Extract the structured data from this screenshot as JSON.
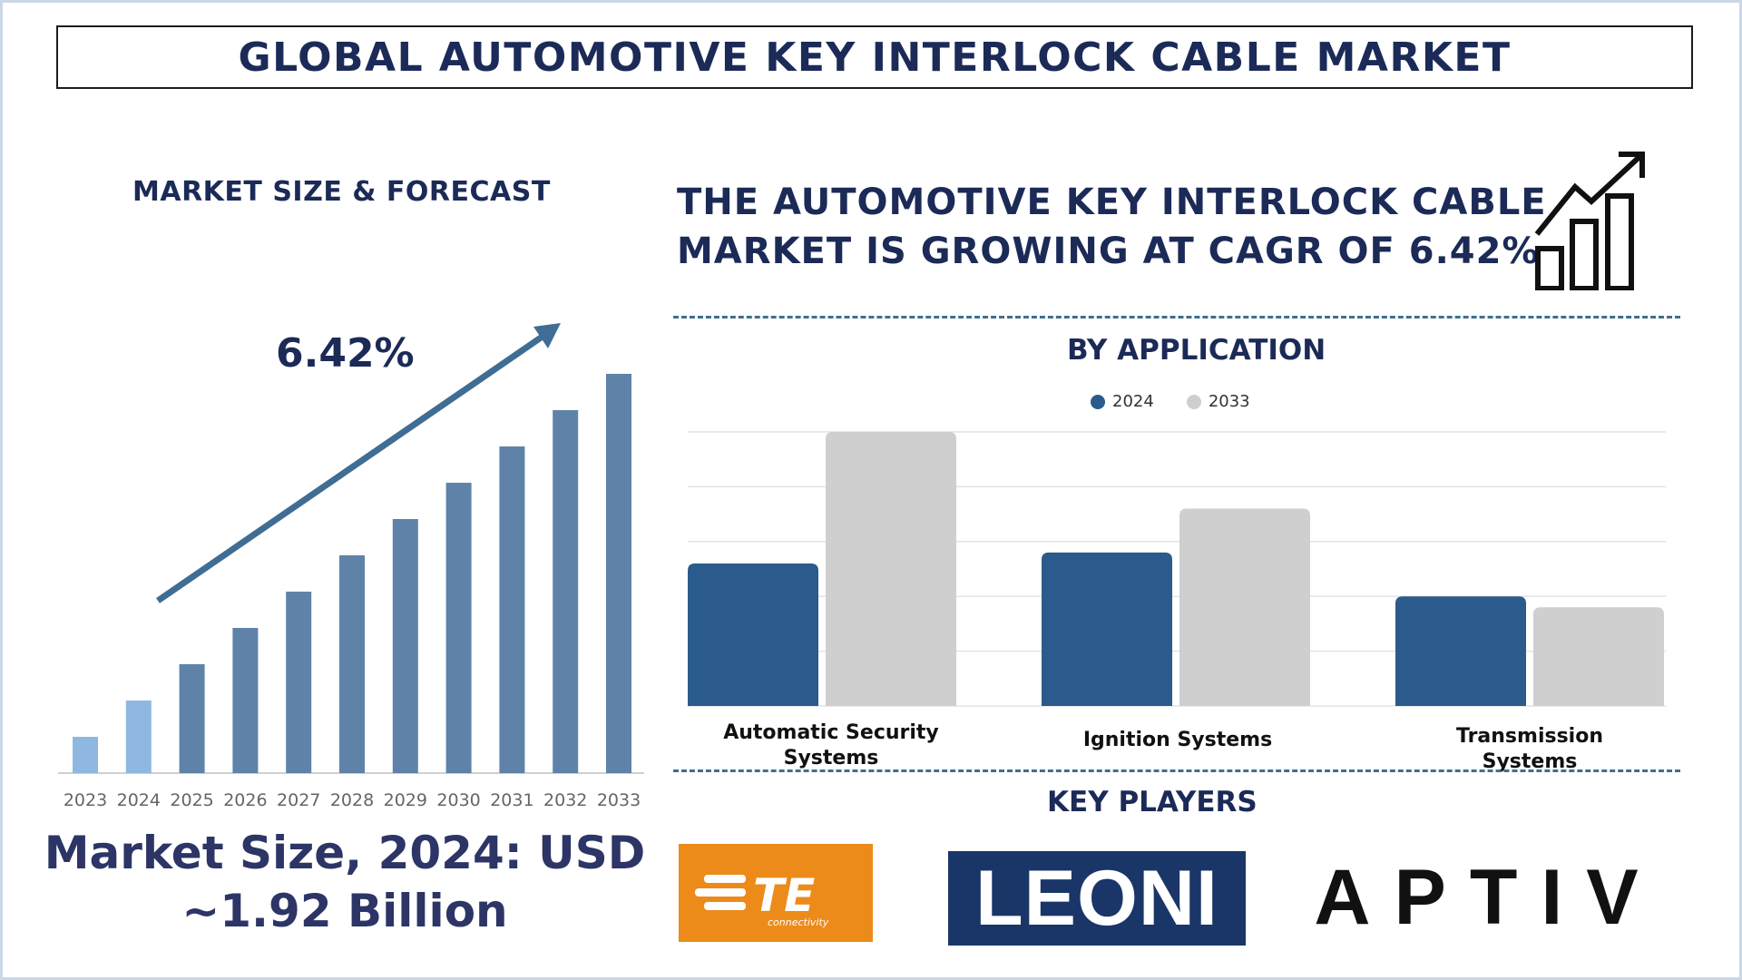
{
  "title": "GLOBAL AUTOMOTIVE KEY INTERLOCK CABLE MARKET",
  "left_panel": {
    "heading": "MARKET SIZE & FORECAST",
    "cagr_label": "6.42%",
    "market_size_line1": "Market Size, 2024: USD",
    "market_size_line2": "~1.92 Billion"
  },
  "right_panel": {
    "headline_line1": "THE AUTOMOTIVE KEY INTERLOCK CABLE",
    "headline_line2": "MARKET IS GROWING AT CAGR OF 6.42%",
    "by_application_title": "BY APPLICATION",
    "key_players_title": "KEY PLAYERS",
    "players": [
      "TE",
      "connectivity",
      "LEONI",
      "APTIV"
    ]
  },
  "colors": {
    "navy": "#1b2a57",
    "bar_2023_2024": "#8fb8e0",
    "bar_forecast": "#5f83a8",
    "arrow": "#3f6d94",
    "series_2024": "#2a5b8c",
    "series_2033": "#cfcfcf",
    "te_orange": "#ec8b1a",
    "leoni_blue": "#1a3568"
  },
  "chart_data": [
    {
      "type": "bar",
      "categories": [
        "2023",
        "2024",
        "2025",
        "2026",
        "2027",
        "2028",
        "2029",
        "2030",
        "2031",
        "2032",
        "2033"
      ],
      "values": [
        1.0,
        2.0,
        3.0,
        4.0,
        5.0,
        6.0,
        7.0,
        8.0,
        9.0,
        10.0,
        11.0
      ],
      "ylim": [
        0,
        11
      ],
      "grid": false,
      "annotation": "6.42%"
    },
    {
      "type": "bar",
      "title": "BY APPLICATION",
      "categories": [
        "Automatic Security Systems",
        "Ignition Systems",
        "Transmission Systems"
      ],
      "series": [
        {
          "name": "2024",
          "values": [
            2.6,
            2.8,
            2.0
          ]
        },
        {
          "name": "2033",
          "values": [
            5.0,
            3.6,
            1.8
          ]
        }
      ],
      "ylim": [
        0,
        5
      ],
      "grid": true,
      "legend": "top-center"
    }
  ]
}
